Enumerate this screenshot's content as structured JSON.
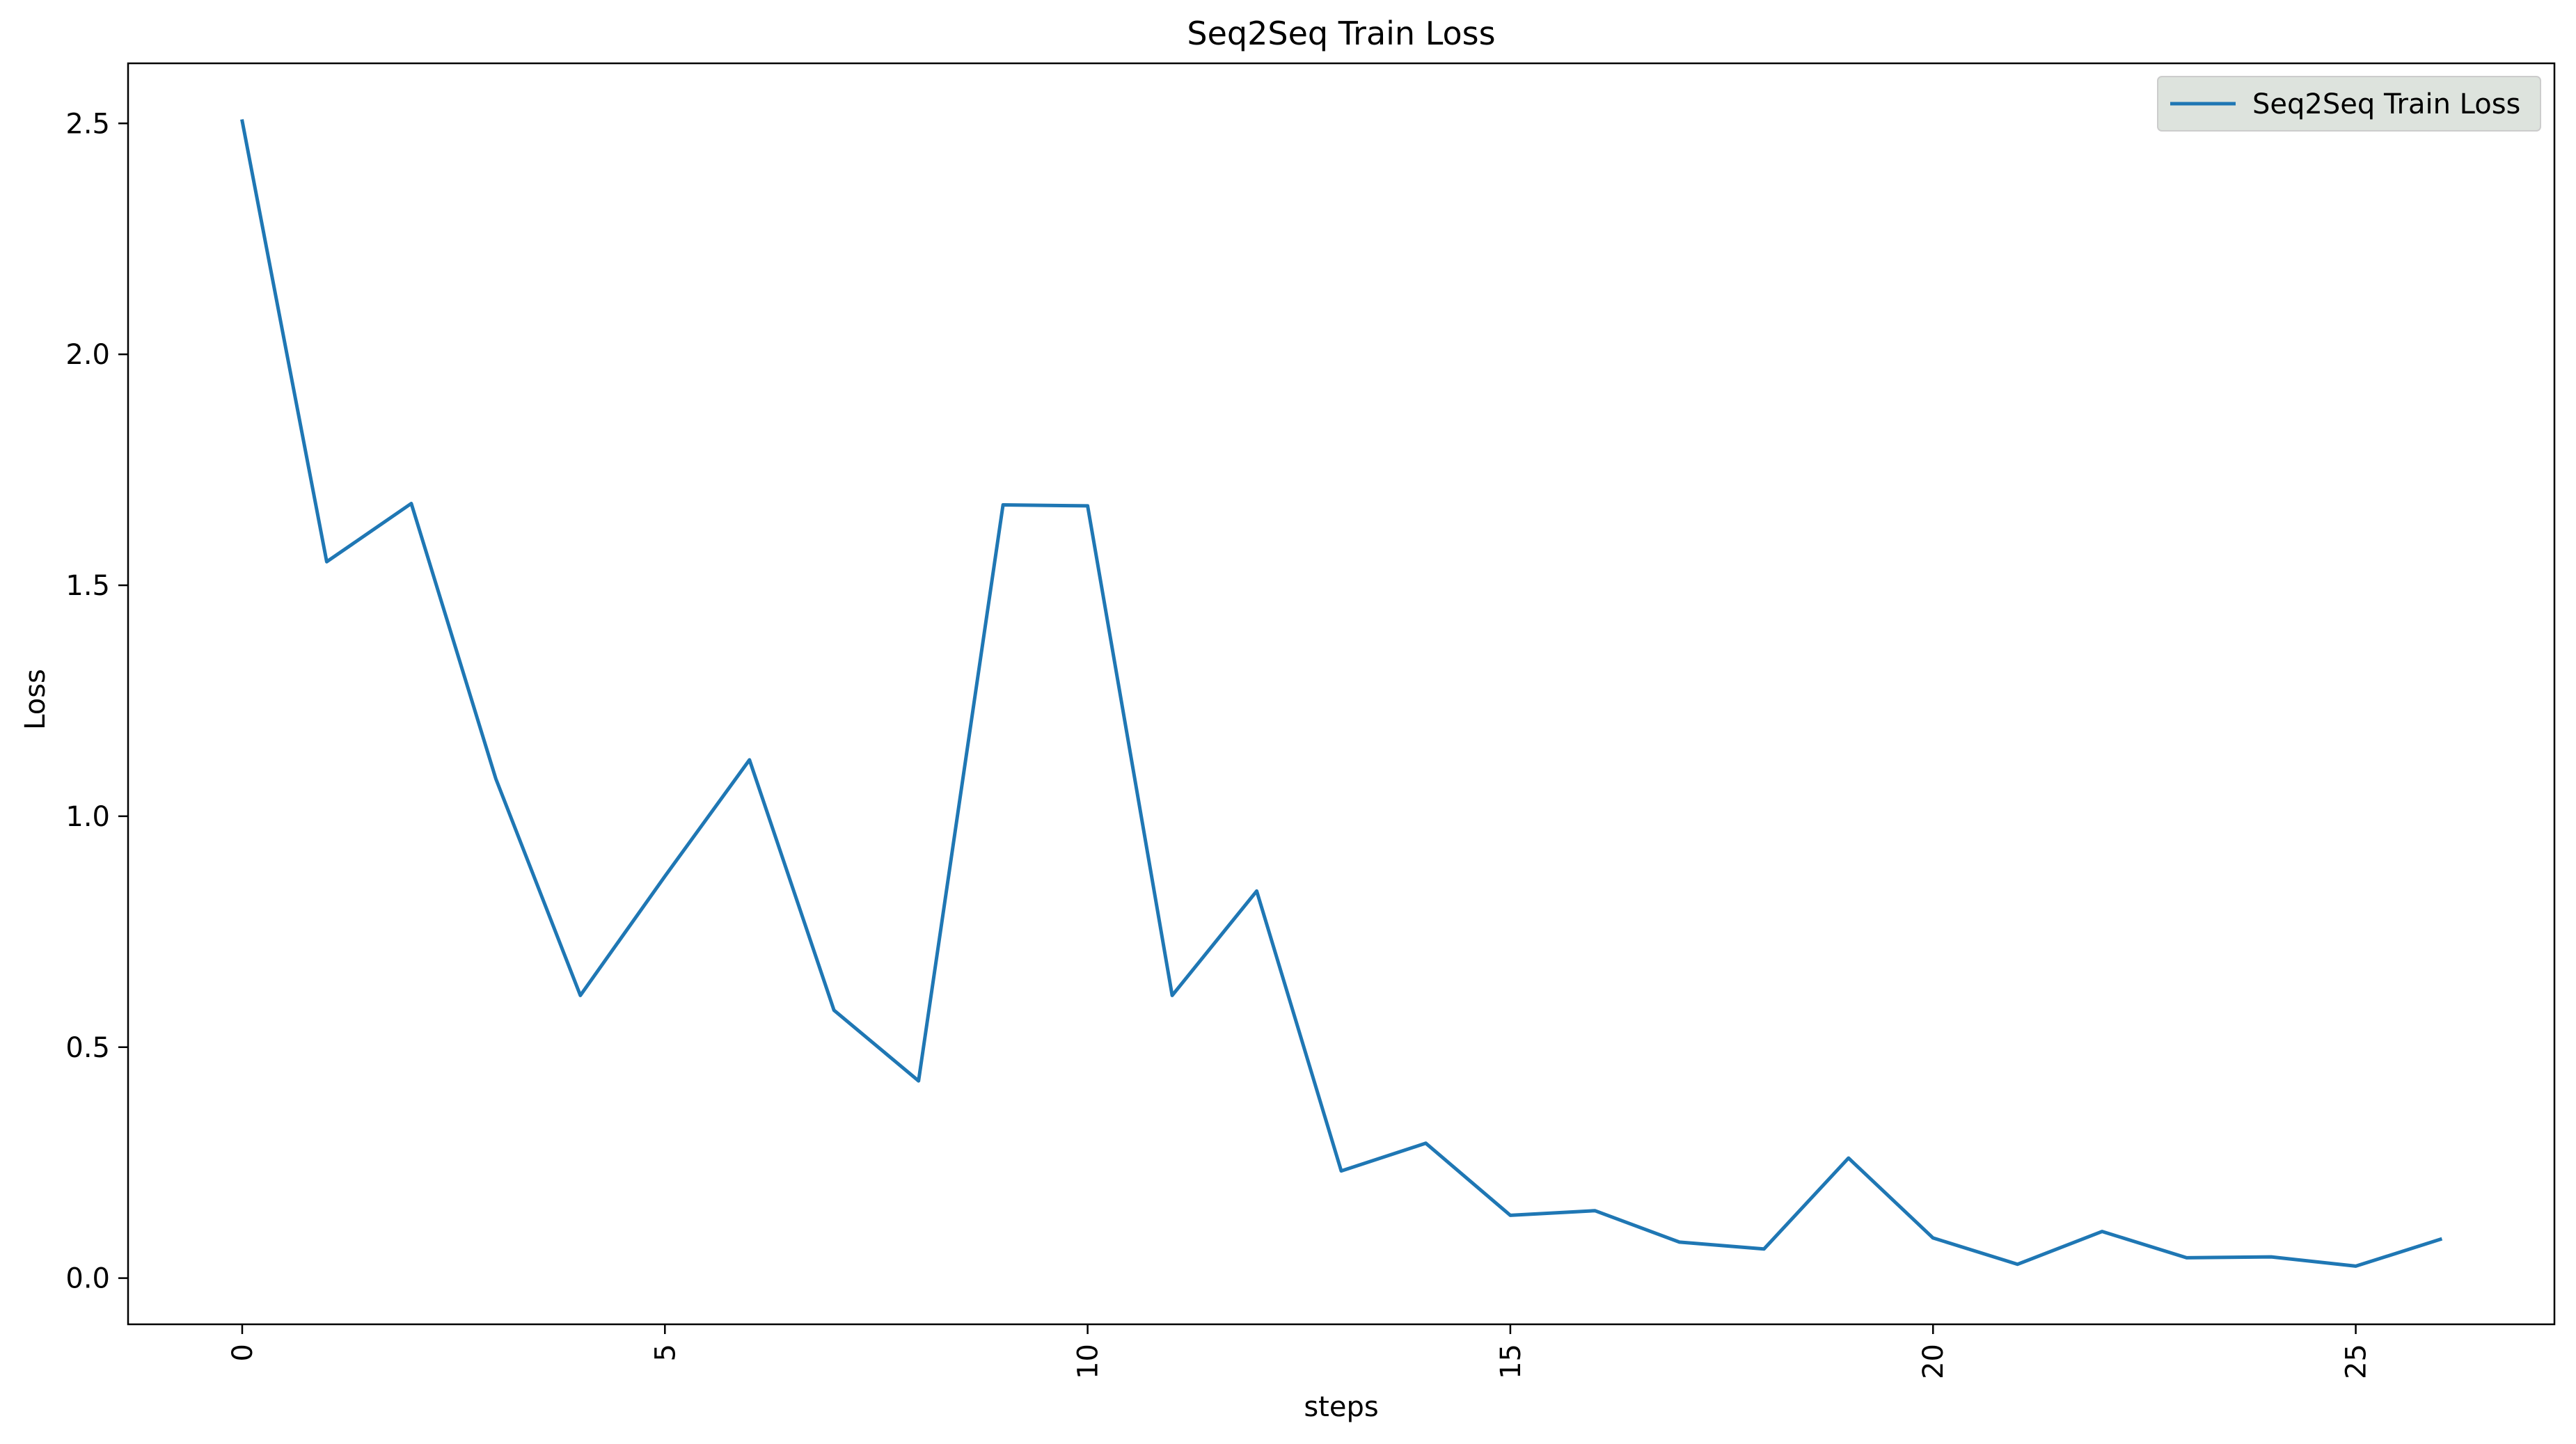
{
  "chart_data": {
    "type": "line",
    "title": "Seq2Seq Train Loss",
    "xlabel": "steps",
    "ylabel": "Loss",
    "xlim": [
      -1.35,
      27.35
    ],
    "ylim": [
      -0.1,
      2.63
    ],
    "x_ticks": [
      0,
      5,
      10,
      15,
      20,
      25
    ],
    "x_tick_labels": [
      "0",
      "5",
      "10",
      "15",
      "20",
      "25"
    ],
    "y_ticks": [
      0.0,
      0.5,
      1.0,
      1.5,
      2.0,
      2.5
    ],
    "y_tick_labels": [
      "0.0",
      "0.5",
      "1.0",
      "1.5",
      "2.0",
      "2.5"
    ],
    "grid": false,
    "legend": {
      "position": "upper-right",
      "entries": [
        "Seq2Seq Train Loss"
      ]
    },
    "colors": {
      "series": "#1f77b4",
      "legend_face": "#dde3dd",
      "legend_edge": "#cccccc"
    },
    "series": [
      {
        "name": "Seq2Seq Train Loss",
        "x": [
          0,
          1,
          2,
          3,
          4,
          5,
          6,
          7,
          8,
          9,
          10,
          11,
          12,
          13,
          14,
          15,
          16,
          17,
          18,
          19,
          20,
          21,
          22,
          23,
          24,
          25,
          26
        ],
        "values": [
          2.505,
          1.551,
          1.677,
          1.081,
          0.612,
          0.87,
          1.122,
          0.58,
          0.427,
          1.674,
          1.672,
          0.612,
          0.838,
          0.232,
          0.292,
          0.136,
          0.146,
          0.078,
          0.063,
          0.26,
          0.087,
          0.03,
          0.101,
          0.044,
          0.046,
          0.026,
          0.084
        ]
      }
    ]
  }
}
